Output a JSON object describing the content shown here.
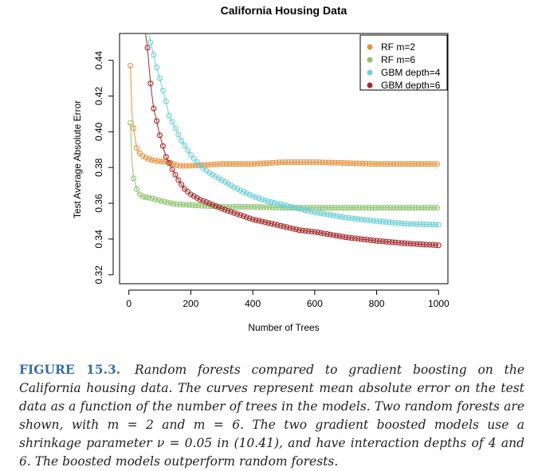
{
  "chart_data": {
    "type": "scatter",
    "title": "California Housing Data",
    "xlabel": "Number of Trees",
    "ylabel": "Test Average Absolute Error",
    "xlim": [
      -30,
      1030
    ],
    "ylim": [
      0.315,
      0.455
    ],
    "xticks": [
      0,
      200,
      400,
      600,
      800,
      1000
    ],
    "yticks": [
      0.32,
      0.34,
      0.36,
      0.38,
      0.4,
      0.42,
      0.44
    ],
    "xtick_labels": [
      "0",
      "200",
      "400",
      "600",
      "800",
      "1000"
    ],
    "ytick_labels": [
      "0.32",
      "0.34",
      "0.36",
      "0.38",
      "0.40",
      "0.42",
      "0.44"
    ],
    "grid": false,
    "legend_position": "top-right",
    "series": [
      {
        "name": "RF m=2",
        "color": "#E8913A",
        "points": [
          [
            5,
            0.437
          ],
          [
            10,
            0.411
          ],
          [
            15,
            0.402
          ],
          [
            20,
            0.397
          ],
          [
            25,
            0.391
          ],
          [
            30,
            0.389
          ],
          [
            40,
            0.387
          ],
          [
            50,
            0.386
          ],
          [
            60,
            0.385
          ],
          [
            80,
            0.384
          ],
          [
            100,
            0.3835
          ],
          [
            130,
            0.383
          ],
          [
            160,
            0.381
          ],
          [
            200,
            0.381
          ],
          [
            250,
            0.3815
          ],
          [
            300,
            0.382
          ],
          [
            400,
            0.382
          ],
          [
            500,
            0.383
          ],
          [
            600,
            0.383
          ],
          [
            700,
            0.3825
          ],
          [
            800,
            0.382
          ],
          [
            900,
            0.382
          ],
          [
            1000,
            0.382
          ]
        ]
      },
      {
        "name": "RF m=6",
        "color": "#8DC46F",
        "points": [
          [
            5,
            0.405
          ],
          [
            10,
            0.384
          ],
          [
            15,
            0.374
          ],
          [
            20,
            0.372
          ],
          [
            25,
            0.368
          ],
          [
            30,
            0.366
          ],
          [
            40,
            0.364
          ],
          [
            50,
            0.3635
          ],
          [
            70,
            0.363
          ],
          [
            100,
            0.3615
          ],
          [
            150,
            0.3595
          ],
          [
            200,
            0.359
          ],
          [
            300,
            0.358
          ],
          [
            400,
            0.358
          ],
          [
            500,
            0.3575
          ],
          [
            600,
            0.3575
          ],
          [
            700,
            0.3575
          ],
          [
            800,
            0.3575
          ],
          [
            900,
            0.3575
          ],
          [
            1000,
            0.3575
          ]
        ]
      },
      {
        "name": "GBM depth=4",
        "color": "#6CCFD8",
        "points": [
          [
            70,
            0.45
          ],
          [
            80,
            0.443
          ],
          [
            90,
            0.436
          ],
          [
            100,
            0.43
          ],
          [
            110,
            0.423
          ],
          [
            120,
            0.417
          ],
          [
            130,
            0.409
          ],
          [
            150,
            0.402
          ],
          [
            170,
            0.395
          ],
          [
            200,
            0.387
          ],
          [
            230,
            0.381
          ],
          [
            260,
            0.377
          ],
          [
            300,
            0.373
          ],
          [
            350,
            0.368
          ],
          [
            400,
            0.364
          ],
          [
            450,
            0.361
          ],
          [
            500,
            0.359
          ],
          [
            550,
            0.357
          ],
          [
            600,
            0.355
          ],
          [
            700,
            0.352
          ],
          [
            800,
            0.35
          ],
          [
            900,
            0.3485
          ],
          [
            1000,
            0.348
          ]
        ]
      },
      {
        "name": "GBM depth=6",
        "color": "#A52A2A",
        "points": [
          [
            60,
            0.447
          ],
          [
            65,
            0.437
          ],
          [
            70,
            0.427
          ],
          [
            75,
            0.42
          ],
          [
            80,
            0.413
          ],
          [
            90,
            0.406
          ],
          [
            100,
            0.398
          ],
          [
            110,
            0.392
          ],
          [
            120,
            0.386
          ],
          [
            140,
            0.379
          ],
          [
            160,
            0.373
          ],
          [
            180,
            0.368
          ],
          [
            200,
            0.365
          ],
          [
            230,
            0.362
          ],
          [
            260,
            0.36
          ],
          [
            300,
            0.357
          ],
          [
            350,
            0.354
          ],
          [
            400,
            0.351
          ],
          [
            450,
            0.349
          ],
          [
            500,
            0.347
          ],
          [
            550,
            0.345
          ],
          [
            600,
            0.344
          ],
          [
            700,
            0.341
          ],
          [
            800,
            0.339
          ],
          [
            900,
            0.3375
          ],
          [
            1000,
            0.3365
          ]
        ]
      }
    ]
  },
  "caption": {
    "label": "FIGURE 15.3.",
    "text": "Random forests compared to gradient boosting on the California housing data. The curves represent mean absolute error on the test data as a function of the number of trees in the models. Two random forests are shown, with m = 2 and m = 6. The two gradient boosted models use a shrinkage parameter ν = 0.05 in (10.41), and have interaction depths of 4 and 6. The boosted models outperform random forests."
  }
}
